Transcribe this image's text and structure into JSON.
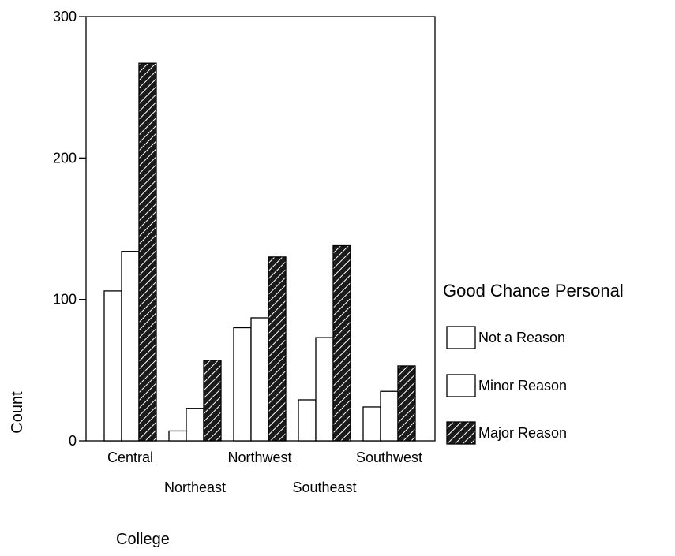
{
  "chart_data": {
    "type": "bar",
    "title": "",
    "xlabel": "College",
    "ylabel": "Count",
    "ylim": [
      0,
      300
    ],
    "yticks": [
      0,
      100,
      200,
      300
    ],
    "categories": [
      "Central",
      "Northeast",
      "Northwest",
      "Southeast",
      "Southwest"
    ],
    "series": [
      {
        "name": "Not a Reason",
        "values": [
          106,
          7,
          80,
          29,
          24
        ],
        "fill": "white"
      },
      {
        "name": "Minor Reason",
        "values": [
          134,
          23,
          87,
          73,
          35
        ],
        "fill": "white"
      },
      {
        "name": "Major Reason",
        "values": [
          267,
          57,
          130,
          138,
          53
        ],
        "fill": "hatched"
      }
    ],
    "legend": {
      "title": "Good Chance Personal",
      "position": "right"
    },
    "grid": false
  }
}
